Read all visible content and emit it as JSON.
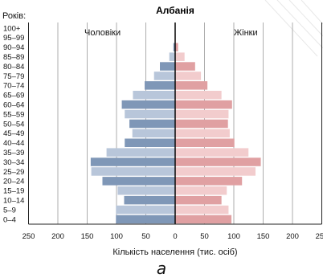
{
  "chart_data": {
    "type": "bar",
    "title": "Албанія",
    "y_axis_title": "Років:",
    "xlabel": "Кількість населення (тис. осіб)",
    "xlim": [
      -250,
      250
    ],
    "x_tick_labels": [
      "250",
      "200",
      "150",
      "100",
      "50",
      "0",
      "50",
      "100",
      "150",
      "200",
      "250"
    ],
    "x_ticks": [
      -250,
      -200,
      -150,
      -100,
      -50,
      0,
      50,
      100,
      150,
      200,
      250
    ],
    "grid": true,
    "categories": [
      "100+",
      "95–99",
      "90–94",
      "85–89",
      "80–84",
      "75–79",
      "70–74",
      "65–69",
      "60–64",
      "55–59",
      "50–54",
      "45–49",
      "40–44",
      "35–39",
      "30–34",
      "25–29",
      "20–24",
      "15–19",
      "10–14",
      "5–9",
      "0–4"
    ],
    "series": [
      {
        "name": "Чоловіки",
        "side": "left",
        "values": [
          0,
          0,
          3,
          10,
          26,
          36,
          52,
          72,
          91,
          86,
          78,
          73,
          86,
          117,
          144,
          143,
          124,
          98,
          87,
          101,
          101
        ]
      },
      {
        "name": "Жінки",
        "side": "right",
        "values": [
          0,
          1,
          5,
          16,
          34,
          44,
          55,
          79,
          97,
          91,
          90,
          93,
          101,
          125,
          146,
          137,
          114,
          88,
          79,
          91,
          96
        ]
      }
    ],
    "colors": {
      "male_dark": "#7f97b7",
      "male_light": "#b8c6da",
      "female_dark": "#e0a0a2",
      "female_light": "#f2cccd"
    }
  },
  "caption": "а"
}
